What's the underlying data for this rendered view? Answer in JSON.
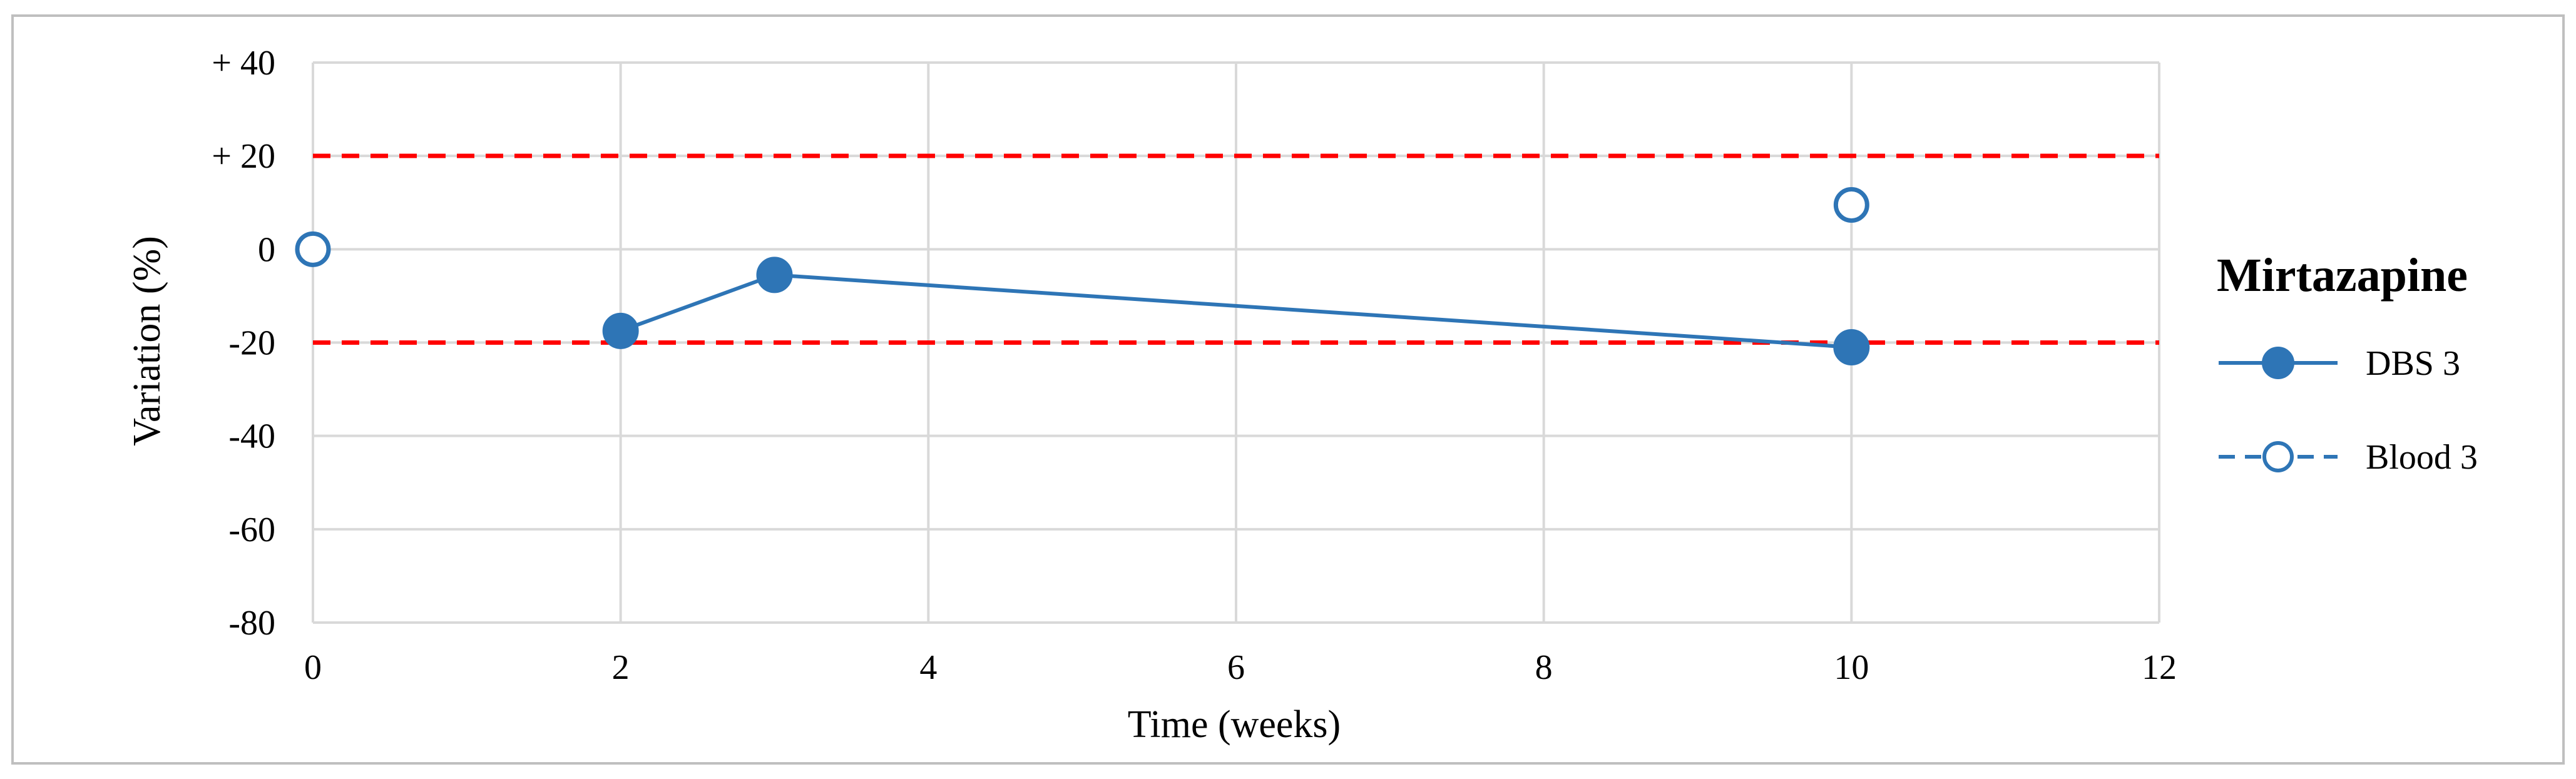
{
  "chart_data": {
    "type": "line",
    "title": "",
    "xlabel": "Time (weeks)",
    "ylabel": "Variation  (%)",
    "xlim": [
      0,
      12
    ],
    "ylim": [
      -80,
      40
    ],
    "x_ticks": [
      0,
      2,
      4,
      6,
      8,
      10,
      12
    ],
    "x_tick_labels": [
      "0",
      "2",
      "4",
      "6",
      "8",
      "10",
      "12"
    ],
    "y_ticks": [
      40,
      20,
      0,
      -20,
      -40,
      -60,
      -80
    ],
    "y_tick_labels": [
      "+ 40",
      "+ 20",
      "0",
      "-20",
      "-40",
      "-60",
      "-80"
    ],
    "grid": true,
    "legend": {
      "title": "Mirtazapine",
      "position": "right"
    },
    "series": [
      {
        "name": "DBS 3",
        "x": [
          2,
          3,
          10
        ],
        "y": [
          -17.5,
          -5.5,
          -21
        ],
        "line_style": "solid",
        "marker": "filled-circle",
        "color": "#2E75B6"
      },
      {
        "name": "Blood 3",
        "x": [
          0,
          10
        ],
        "y": [
          0,
          9.5
        ],
        "line_style": "none",
        "legend_line_style": "dashed",
        "marker": "open-circle",
        "color": "#2E75B6"
      }
    ],
    "reference_lines": [
      {
        "y": 20,
        "color": "#FF0000",
        "style": "dashed"
      },
      {
        "y": -20,
        "color": "#FF0000",
        "style": "dashed"
      }
    ],
    "colors": {
      "grid": "#D9D9D9",
      "frame": "#BFBFBF",
      "series": "#2E75B6",
      "reference": "#FF0000"
    }
  }
}
